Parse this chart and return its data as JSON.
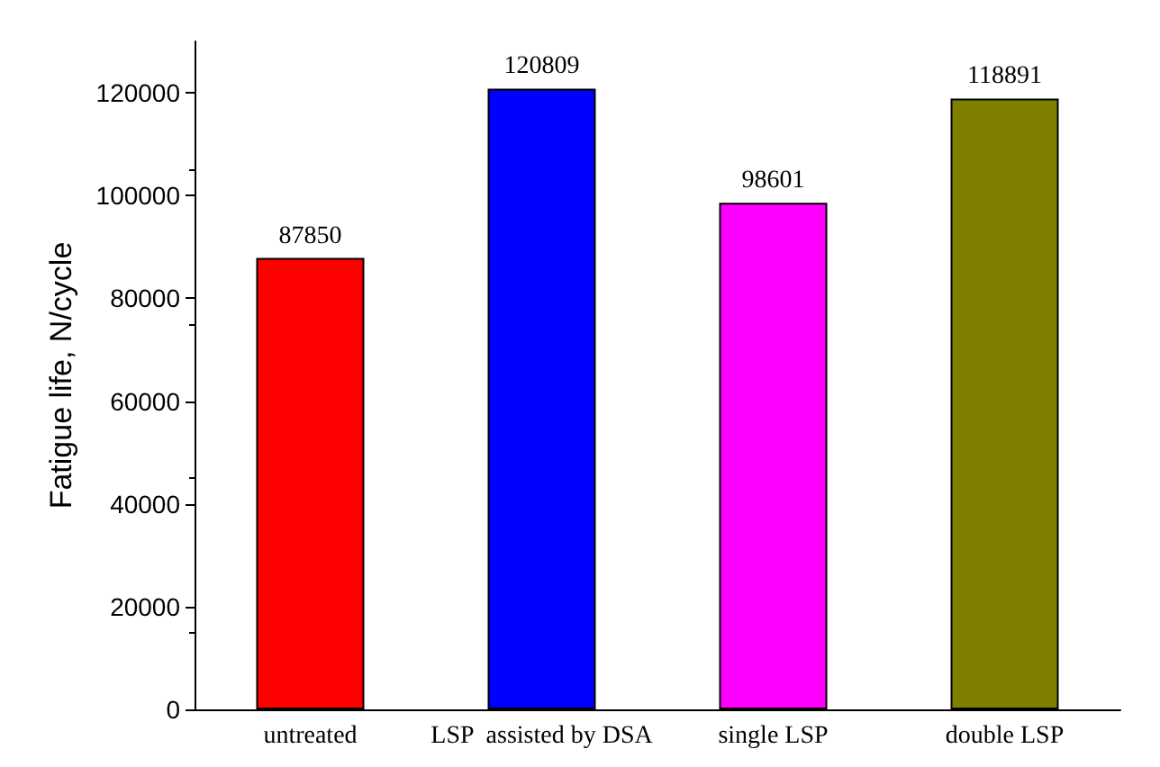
{
  "chart_data": {
    "type": "bar",
    "ylabel": "Fatigue life, N/cycle",
    "categories": [
      "untreated",
      "LSP  assisted by DSA",
      "single LSP",
      "double LSP"
    ],
    "values": [
      87850,
      120809,
      98601,
      118891
    ],
    "colors": [
      "#ff0000",
      "#0000ff",
      "#ff00ff",
      "#808000"
    ],
    "ylim": [
      0,
      130000
    ],
    "yticks": [
      0,
      20000,
      40000,
      60000,
      80000,
      100000,
      120000
    ],
    "grid": false,
    "data_labels": true
  }
}
